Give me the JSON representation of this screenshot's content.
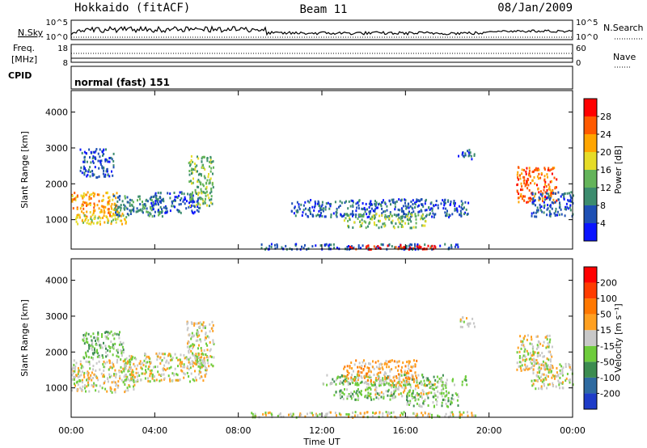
{
  "header": {
    "station": "Hokkaido (fitACF)",
    "beam": "Beam 11",
    "date": "08/Jan/2009"
  },
  "noise_panel": {
    "left_label": "N.Sky",
    "left_ticks": [
      "10^5",
      "10^0"
    ],
    "right_label": "N.Search",
    "right_ticks": [
      "10^5",
      "10^0"
    ]
  },
  "freq_panel": {
    "left_label_line1": "Freq.",
    "left_label_line2": "[MHz]",
    "left_ticks": [
      "18",
      "8"
    ],
    "right_label": "Nave",
    "right_ticks": [
      "60",
      "0"
    ]
  },
  "cpid_panel": {
    "label": "CPID",
    "mode": "normal (fast) 151"
  },
  "x_axis": {
    "label": "Time UT",
    "ticks": [
      "00:00",
      "04:00",
      "08:00",
      "12:00",
      "16:00",
      "20:00",
      "00:00"
    ]
  },
  "power_colorbar": {
    "title": "Power [dB]",
    "ticks": [
      "4",
      "8",
      "12",
      "16",
      "20",
      "24",
      "28"
    ],
    "colors": [
      "#0a14ff",
      "#1e50b4",
      "#3c8c6e",
      "#64b45a",
      "#e6dc28",
      "#ffa500",
      "#ff5a00",
      "#ff0000"
    ]
  },
  "velocity_colorbar": {
    "title": "Velocity [m s⁻¹]",
    "ticks": [
      "200",
      "100",
      "50",
      "15",
      "-15",
      "-50",
      "-100",
      "-200"
    ],
    "colors": [
      "#1e3cc8",
      "#2e6aa0",
      "#3c8c50",
      "#6ecc3c",
      "#c8c8c8",
      "#ffa020",
      "#ff7800",
      "#ff3c00",
      "#ff0000"
    ]
  },
  "chart_data": [
    {
      "type": "heatmap",
      "name": "power",
      "xlabel": "Time UT",
      "ylabel": "Slant Range [km]",
      "xlim": [
        0,
        24
      ],
      "ylim": [
        180,
        4600
      ],
      "y_ticks": [
        1000,
        2000,
        3000,
        4000
      ],
      "x_ticks_hours": [
        0,
        4,
        8,
        12,
        16,
        20,
        24
      ],
      "regions": [
        {
          "t": [
            0.0,
            2.2
          ],
          "r": [
            1000,
            1800
          ],
          "level": 5
        },
        {
          "t": [
            0.2,
            2.6
          ],
          "r": [
            900,
            1200
          ],
          "level": 4
        },
        {
          "t": [
            2.0,
            4.4
          ],
          "r": [
            1100,
            1700
          ],
          "level": 2
        },
        {
          "t": [
            3.8,
            6.2
          ],
          "r": [
            1200,
            1800
          ],
          "level": 1
        },
        {
          "t": [
            0.4,
            2.0
          ],
          "r": [
            2200,
            3000
          ],
          "level": 1
        },
        {
          "t": [
            5.6,
            6.8
          ],
          "r": [
            1400,
            2800
          ],
          "level": 3
        },
        {
          "t": [
            9.0,
            18.5
          ],
          "r": [
            200,
            350
          ],
          "level": 1
        },
        {
          "t": [
            13.0,
            17.5
          ],
          "r": [
            200,
            320
          ],
          "level": 7
        },
        {
          "t": [
            10.5,
            19.0
          ],
          "r": [
            1100,
            1600
          ],
          "level": 1
        },
        {
          "t": [
            13.0,
            17.0
          ],
          "r": [
            800,
            1200
          ],
          "level": 3
        },
        {
          "t": [
            18.5,
            19.3
          ],
          "r": [
            2700,
            3000
          ],
          "level": 1
        },
        {
          "t": [
            21.3,
            23.2
          ],
          "r": [
            1500,
            2500
          ],
          "level": 6
        },
        {
          "t": [
            22.0,
            24.0
          ],
          "r": [
            1100,
            1800
          ],
          "level": 1
        }
      ]
    },
    {
      "type": "heatmap",
      "name": "velocity",
      "xlabel": "Time UT",
      "ylabel": "Slant Range [km]",
      "xlim": [
        0,
        24
      ],
      "ylim": [
        180,
        4600
      ],
      "y_ticks": [
        1000,
        2000,
        3000,
        4000
      ],
      "x_ticks_hours": [
        0,
        4,
        8,
        12,
        16,
        20,
        24
      ],
      "regions": [
        {
          "t": [
            0.0,
            3.0
          ],
          "r": [
            900,
            1800
          ],
          "level": 4
        },
        {
          "t": [
            2.5,
            6.5
          ],
          "r": [
            1200,
            2000
          ],
          "level": 4
        },
        {
          "t": [
            0.5,
            2.5
          ],
          "r": [
            1800,
            2600
          ],
          "level": 3
        },
        {
          "t": [
            5.5,
            6.8
          ],
          "r": [
            1600,
            2900
          ],
          "level": 4
        },
        {
          "t": [
            12.0,
            19.0
          ],
          "r": [
            1100,
            1400
          ],
          "level": 3
        },
        {
          "t": [
            13.0,
            16.5
          ],
          "r": [
            1200,
            1800
          ],
          "level": 5
        },
        {
          "t": [
            14.0,
            18.0
          ],
          "r": [
            800,
            1200
          ],
          "level": 4
        },
        {
          "t": [
            12.5,
            15.5
          ],
          "r": [
            700,
            1000
          ],
          "level": 3
        },
        {
          "t": [
            16.0,
            18.5
          ],
          "r": [
            500,
            900
          ],
          "level": 3
        },
        {
          "t": [
            8.5,
            19.5
          ],
          "r": [
            200,
            360
          ],
          "level": 4
        },
        {
          "t": [
            18.6,
            19.3
          ],
          "r": [
            2700,
            3000
          ],
          "level": 4
        },
        {
          "t": [
            21.3,
            23.0
          ],
          "r": [
            1500,
            2500
          ],
          "level": 4
        },
        {
          "t": [
            22.0,
            24.0
          ],
          "r": [
            1000,
            1700
          ],
          "level": 4
        }
      ]
    }
  ]
}
